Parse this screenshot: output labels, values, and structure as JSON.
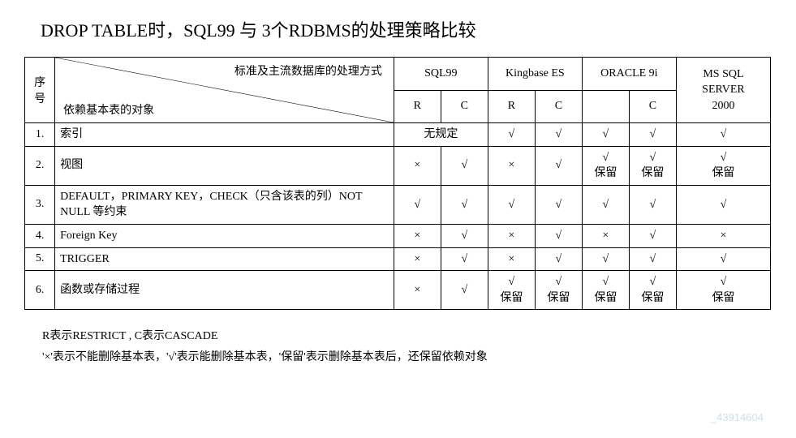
{
  "title": "DROP TABLE时，SQL99 与 3个RDBMS的处理策略比较",
  "header": {
    "seq": "序\n号",
    "diag_top": "标准及主流数据库的处理方式",
    "diag_bottom": "依赖基本表的对象",
    "db1": "SQL99",
    "db2": "Kingbase ES",
    "db3": "ORACLE 9i",
    "db4": "MS SQL\nSERVER\n2000",
    "r": "R",
    "c": "C"
  },
  "rows": [
    {
      "seq": "1.",
      "desc": "索引",
      "sql99_span": "无规定",
      "kb_r": "√",
      "kb_c": "√",
      "o_r": "√",
      "o_c": "√",
      "ms": "√"
    },
    {
      "seq": "2.",
      "desc": "视图",
      "sql99_r": "×",
      "sql99_c": "√",
      "kb_r": "×",
      "kb_c": "√",
      "o_r": "√\n保留",
      "o_c": "√\n保留",
      "ms": "√\n保留"
    },
    {
      "seq": "3.",
      "desc": "DEFAULT，PRIMARY KEY，CHECK（只含该表的列）NOT NULL 等约束",
      "sql99_r": "√",
      "sql99_c": "√",
      "kb_r": "√",
      "kb_c": "√",
      "o_r": "√",
      "o_c": "√",
      "ms": "√"
    },
    {
      "seq": "4.",
      "desc": "Foreign Key",
      "sql99_r": "×",
      "sql99_c": "√",
      "kb_r": "×",
      "kb_c": "√",
      "o_r": "×",
      "o_c": "√",
      "ms": "×"
    },
    {
      "seq": "5.",
      "desc": "TRIGGER",
      "sql99_r": "×",
      "sql99_c": "√",
      "kb_r": "×",
      "kb_c": "√",
      "o_r": "√",
      "o_c": "√",
      "ms": "√"
    },
    {
      "seq": "6.",
      "desc": "函数或存储过程",
      "sql99_r": "×",
      "sql99_c": "√",
      "kb_r": "√\n保留",
      "kb_c": "√\n保留",
      "o_r": "√\n保留",
      "o_c": "√\n保留",
      "ms": "√\n保留"
    }
  ],
  "notes": {
    "line1": "R表示RESTRICT , C表示CASCADE",
    "line2": "'×'表示不能删除基本表，'√'表示能删除基本表，'保留'表示删除基本表后，还保留依赖对象"
  },
  "watermark": "_43914604"
}
